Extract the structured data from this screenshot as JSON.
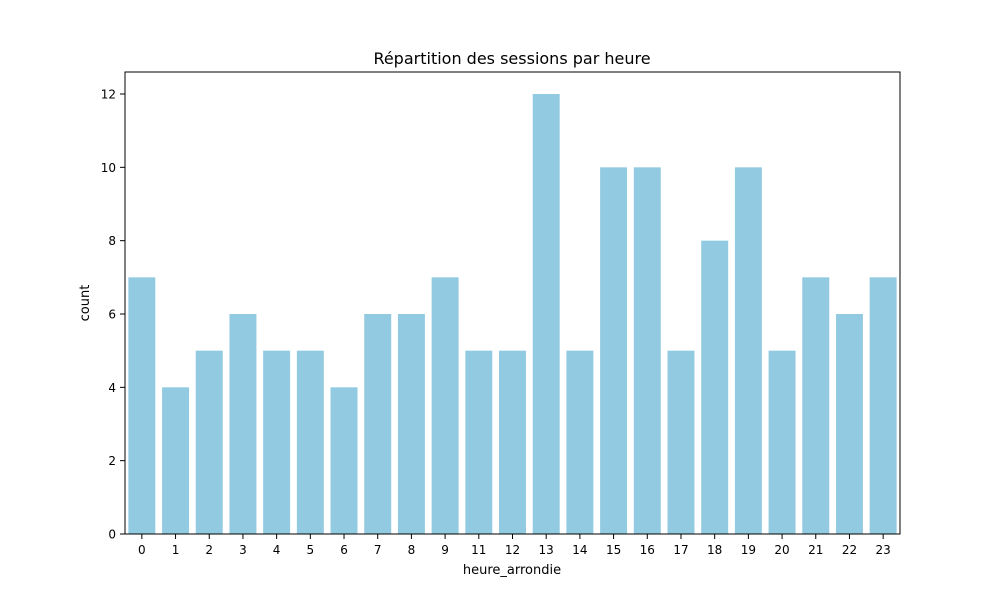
{
  "chart_data": {
    "type": "bar",
    "title": "Répartition des sessions par heure",
    "xlabel": "heure_arrondie",
    "ylabel": "count",
    "categories": [
      "0",
      "1",
      "2",
      "3",
      "4",
      "5",
      "6",
      "7",
      "8",
      "9",
      "11",
      "12",
      "13",
      "14",
      "15",
      "16",
      "17",
      "18",
      "19",
      "20",
      "21",
      "22",
      "23"
    ],
    "values": [
      7,
      4,
      5,
      6,
      5,
      5,
      4,
      6,
      6,
      7,
      5,
      5,
      12,
      5,
      10,
      10,
      5,
      8,
      10,
      5,
      7,
      6,
      7
    ],
    "ylim": [
      0,
      12.6
    ],
    "yticks": [
      0,
      2,
      4,
      6,
      8,
      10,
      12
    ],
    "grid": false,
    "legend": "none",
    "bar_color": "#92cae1"
  }
}
